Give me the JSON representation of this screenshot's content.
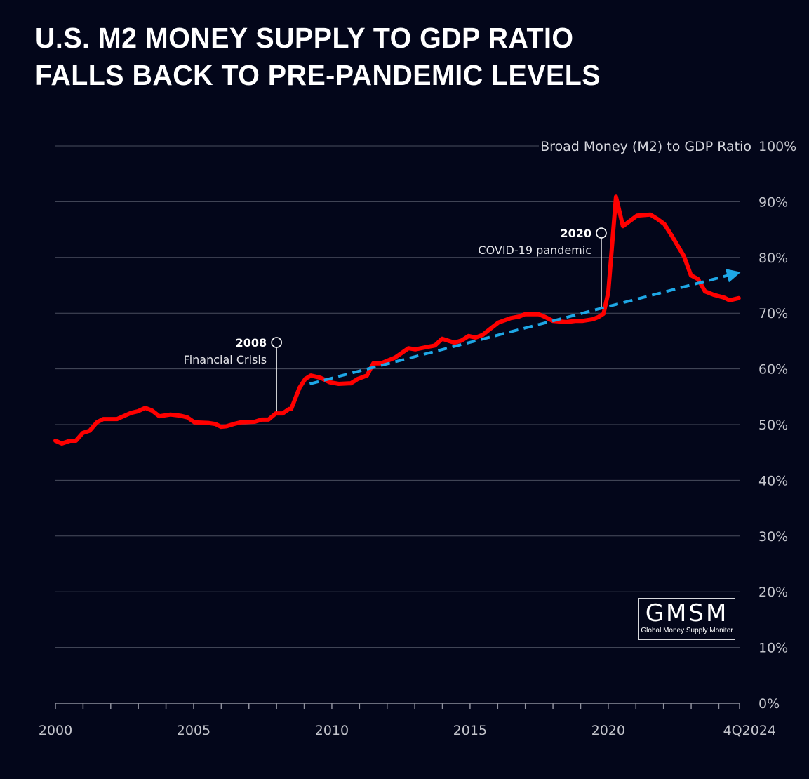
{
  "title_lines": [
    "U.S. M2 MONEY SUPPLY TO GDP RATIO",
    "FALLS BACK TO PRE-PANDEMIC LEVELS"
  ],
  "logo": {
    "acronym": "GMSM",
    "name": "Global Money Supply Monitor"
  },
  "colors": {
    "background": "#03061a",
    "series": "#ff0000",
    "trend": "#1ea7e6",
    "grid": "#4a4d5e",
    "text": "#c4c5cc"
  },
  "chart_data": {
    "type": "line",
    "title": "U.S. M2 Money Supply to GDP Ratio Falls Back to Pre-Pandemic Levels",
    "xlabel": "",
    "ylabel": "Broad Money (M2) to GDP Ratio",
    "y_axis_position": "right",
    "xlim": [
      2000,
      2024.75
    ],
    "ylim": [
      0,
      100
    ],
    "y_ticks": [
      0,
      10,
      20,
      30,
      40,
      50,
      60,
      70,
      80,
      90,
      100
    ],
    "y_tick_labels": [
      "0%",
      "10%",
      "20%",
      "30%",
      "40%",
      "50%",
      "60%",
      "70%",
      "80%",
      "90%",
      "100%"
    ],
    "x_ticks": [
      2000,
      2005,
      2010,
      2015,
      2020,
      2024.75
    ],
    "x_tick_labels": [
      "2000",
      "2005",
      "2010",
      "2015",
      "2020",
      "4Q2024"
    ],
    "x_minor_ticks_per_year": 1,
    "grid": true,
    "series": [
      {
        "name": "Broad Money (M2) to GDP Ratio",
        "x": [
          2000.0,
          2000.23,
          2000.53,
          2000.74,
          2000.99,
          2001.24,
          2001.5,
          2001.73,
          2002.23,
          2002.74,
          2002.99,
          2003.25,
          2003.5,
          2003.76,
          2004.16,
          2004.52,
          2004.77,
          2005.03,
          2005.53,
          2005.79,
          2005.99,
          2006.19,
          2006.45,
          2006.7,
          2007.21,
          2007.46,
          2007.71,
          2007.97,
          2008.22,
          2008.45,
          2008.53,
          2008.83,
          2009.04,
          2009.24,
          2009.59,
          2009.92,
          2010.25,
          2010.61,
          2010.69,
          2010.94,
          2011.27,
          2011.5,
          2011.78,
          2012.03,
          2012.28,
          2012.51,
          2012.77,
          2013.02,
          2013.43,
          2013.73,
          2013.99,
          2014.24,
          2014.44,
          2014.7,
          2014.95,
          2015.2,
          2015.46,
          2015.71,
          2016.02,
          2016.47,
          2016.78,
          2016.98,
          2017.49,
          2017.72,
          2018.0,
          2018.48,
          2018.81,
          2019.06,
          2019.44,
          2019.64,
          2019.83,
          2020.0,
          2020.28,
          2020.53,
          2021.04,
          2021.52,
          2021.78,
          2022.03,
          2022.31,
          2022.74,
          2022.99,
          2023.25,
          2023.5,
          2023.81,
          2024.19,
          2024.39,
          2024.72
        ],
        "values": [
          47.1,
          46.6,
          47.1,
          47.1,
          48.5,
          48.9,
          50.4,
          51.0,
          51.0,
          52.1,
          52.4,
          53.0,
          52.5,
          51.5,
          51.8,
          51.6,
          51.3,
          50.4,
          50.3,
          50.1,
          49.6,
          49.7,
          50.1,
          50.4,
          50.5,
          50.9,
          50.9,
          52.0,
          52.0,
          52.8,
          52.8,
          56.6,
          58.2,
          58.8,
          58.4,
          57.6,
          57.3,
          57.4,
          57.4,
          58.2,
          58.8,
          61.0,
          61.0,
          61.5,
          62.0,
          62.8,
          63.7,
          63.5,
          63.9,
          64.2,
          65.4,
          65.0,
          64.7,
          65.1,
          65.9,
          65.6,
          66.1,
          67.1,
          68.3,
          69.1,
          69.4,
          69.8,
          69.8,
          69.3,
          68.6,
          68.4,
          68.6,
          68.6,
          68.9,
          69.3,
          69.9,
          73.7,
          90.9,
          85.6,
          87.5,
          87.7,
          86.9,
          86.0,
          83.8,
          80.2,
          76.8,
          76.1,
          73.9,
          73.3,
          72.8,
          72.3,
          72.7
        ]
      },
      {
        "name": "Trend",
        "style": "dashed-arrow",
        "x": [
          2009.2,
          2024.75
        ],
        "values": [
          57.3,
          77.3
        ]
      }
    ],
    "annotations": [
      {
        "year_label": "2008",
        "text": "Financial Crisis",
        "x": 2008.0,
        "value": 52.2
      },
      {
        "year_label": "2020",
        "text": "COVID-19 pandemic",
        "x": 2019.75,
        "value": 71.0
      }
    ]
  }
}
